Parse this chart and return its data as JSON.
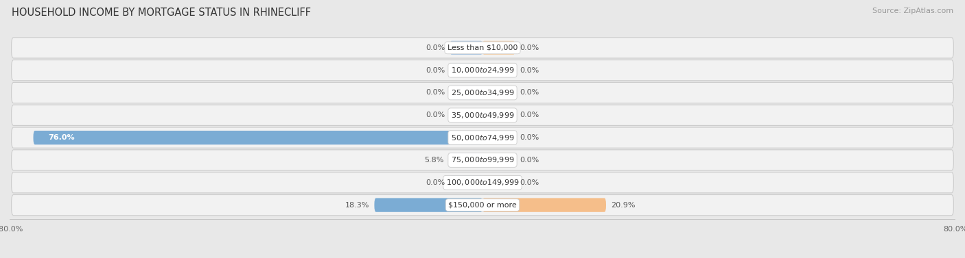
{
  "title": "HOUSEHOLD INCOME BY MORTGAGE STATUS IN RHINECLIFF",
  "source": "Source: ZipAtlas.com",
  "categories": [
    "Less than $10,000",
    "$10,000 to $24,999",
    "$25,000 to $34,999",
    "$35,000 to $49,999",
    "$50,000 to $74,999",
    "$75,000 to $99,999",
    "$100,000 to $149,999",
    "$150,000 or more"
  ],
  "without_mortgage": [
    0.0,
    0.0,
    0.0,
    0.0,
    76.0,
    5.8,
    0.0,
    18.3
  ],
  "with_mortgage": [
    0.0,
    0.0,
    0.0,
    0.0,
    0.0,
    0.0,
    0.0,
    20.9
  ],
  "color_without": "#7bacd4",
  "color_with": "#f5be8a",
  "color_without_stub": "#aec9e4",
  "color_with_stub": "#f7d4ae",
  "xlim_left": -80,
  "xlim_right": 80,
  "stub_size": 5.5,
  "bg_color": "#e8e8e8",
  "row_color": "#f2f2f2",
  "row_border_color": "#cccccc",
  "title_fontsize": 10.5,
  "source_fontsize": 8,
  "label_fontsize": 8,
  "category_fontsize": 8
}
